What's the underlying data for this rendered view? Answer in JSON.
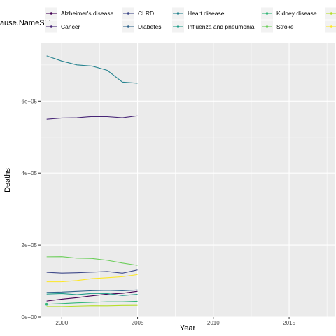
{
  "chart_data": {
    "type": "line",
    "title": "",
    "xlabel": "Year",
    "ylabel": "Deaths",
    "legend_title": "Cause.NameSh)",
    "legend_position": "top",
    "grid": true,
    "xlim": [
      1998.6,
      2018
    ],
    "ylim": [
      0,
      760000
    ],
    "x_ticks": [
      2000,
      2005,
      2010,
      2015
    ],
    "x_tick_labels": [
      "2000",
      "2005",
      "2010",
      "2015"
    ],
    "y_ticks": [
      0,
      200000,
      400000,
      600000
    ],
    "y_tick_labels": [
      "0e+00",
      "2e+05",
      "4e+05",
      "6e+05"
    ],
    "x": [
      1999,
      2000,
      2001,
      2002,
      2003,
      2004,
      2005
    ],
    "series": [
      {
        "name": "Alzheimer's disease",
        "color": "#440154",
        "values": [
          44500,
          49600,
          53900,
          59000,
          63500,
          66000,
          71600
        ]
      },
      {
        "name": "Cancer",
        "color": "#482677",
        "values": [
          549800,
          553100,
          553800,
          557300,
          556900,
          553900,
          559300
        ]
      },
      {
        "name": "CLRD",
        "color": "#3f4a8a",
        "values": [
          124200,
          122000,
          123000,
          124800,
          126400,
          121900,
          130900
        ]
      },
      {
        "name": "Diabetes",
        "color": "#31678e",
        "values": [
          68400,
          69300,
          71400,
          73200,
          74200,
          73100,
          75100
        ]
      },
      {
        "name": "Heart disease",
        "color": "#26838f",
        "values": [
          725200,
          710800,
          700100,
          696900,
          685100,
          652500,
          649400
        ]
      },
      {
        "name": "Influenza and pneumonia",
        "color": "#1f9d8a",
        "values": [
          63700,
          65300,
          62000,
          65700,
          65200,
          59700,
          63000
        ]
      },
      {
        "name": "Kidney disease",
        "color": "#35b779",
        "values": [
          35500,
          37300,
          39500,
          40900,
          42500,
          42500,
          43900
        ]
      },
      {
        "name": "Stroke",
        "color": "#6cce5a",
        "values": [
          167400,
          167700,
          163500,
          162700,
          157700,
          150100,
          143600
        ]
      },
      {
        "name": "",
        "color": "#b6de2b",
        "values": [
          29200,
          29400,
          30600,
          31700,
          31500,
          32400,
          32600
        ]
      },
      {
        "name": "",
        "color": "#fde725",
        "values": [
          97900,
          97900,
          101500,
          106700,
          109300,
          112000,
          117800
        ]
      }
    ],
    "points": [
      {
        "series": 6,
        "x": 1999,
        "y": 35500
      }
    ]
  }
}
